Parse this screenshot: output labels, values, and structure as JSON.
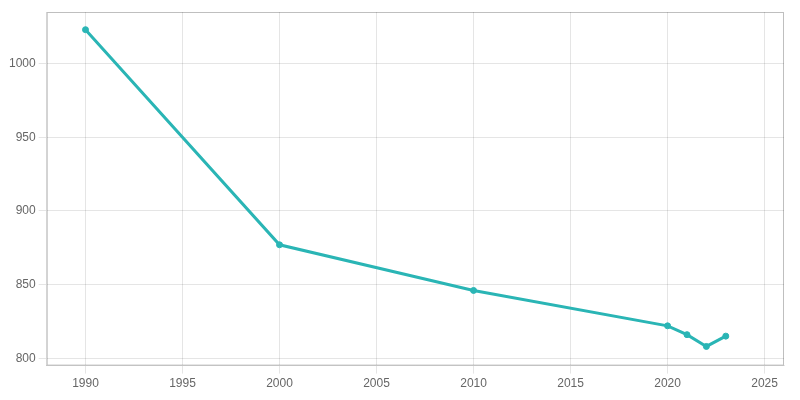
{
  "chart_data": {
    "type": "line",
    "x": [
      1990,
      2000,
      2010,
      2020,
      2021,
      2022,
      2023
    ],
    "values": [
      1023,
      877,
      846,
      822,
      816,
      808,
      815
    ],
    "color": "#2ab5b5",
    "marker": "circle",
    "xlim": [
      1988,
      2026
    ],
    "xticks": [
      1990,
      1995,
      2000,
      2005,
      2010,
      2015,
      2020,
      2025
    ],
    "ylim": [
      795,
      1035
    ],
    "yticks": [
      800,
      850,
      900,
      950,
      1000
    ],
    "grid": true
  }
}
